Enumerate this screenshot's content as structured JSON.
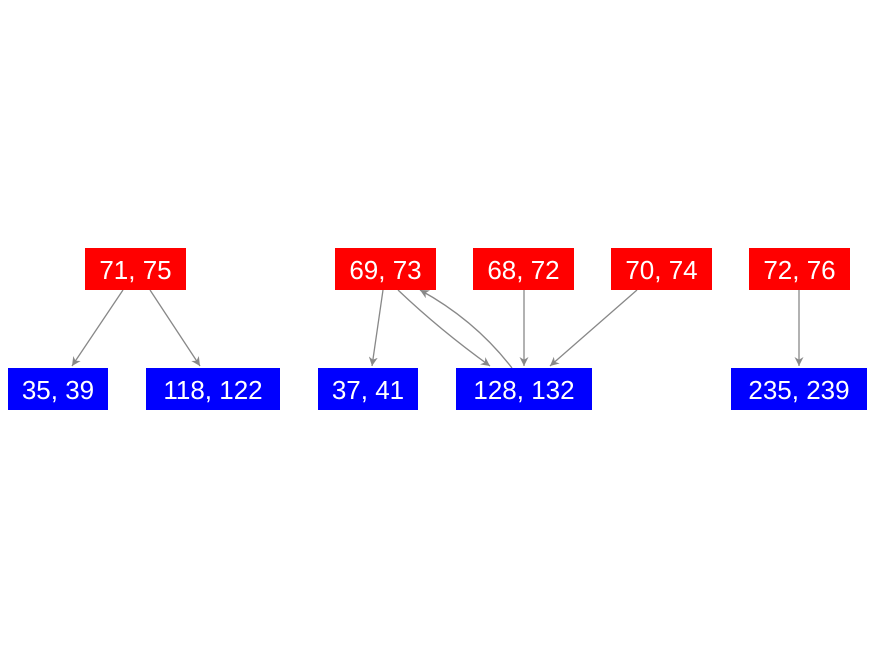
{
  "nodes": [
    {
      "label": "71, 75"
    },
    {
      "label": "69, 73"
    },
    {
      "label": "68, 72"
    },
    {
      "label": "70, 74"
    },
    {
      "label": "72, 76"
    },
    {
      "label": "35, 39"
    },
    {
      "label": "118, 122"
    },
    {
      "label": "37, 41"
    },
    {
      "label": "128, 132"
    },
    {
      "label": "235, 239"
    }
  ]
}
